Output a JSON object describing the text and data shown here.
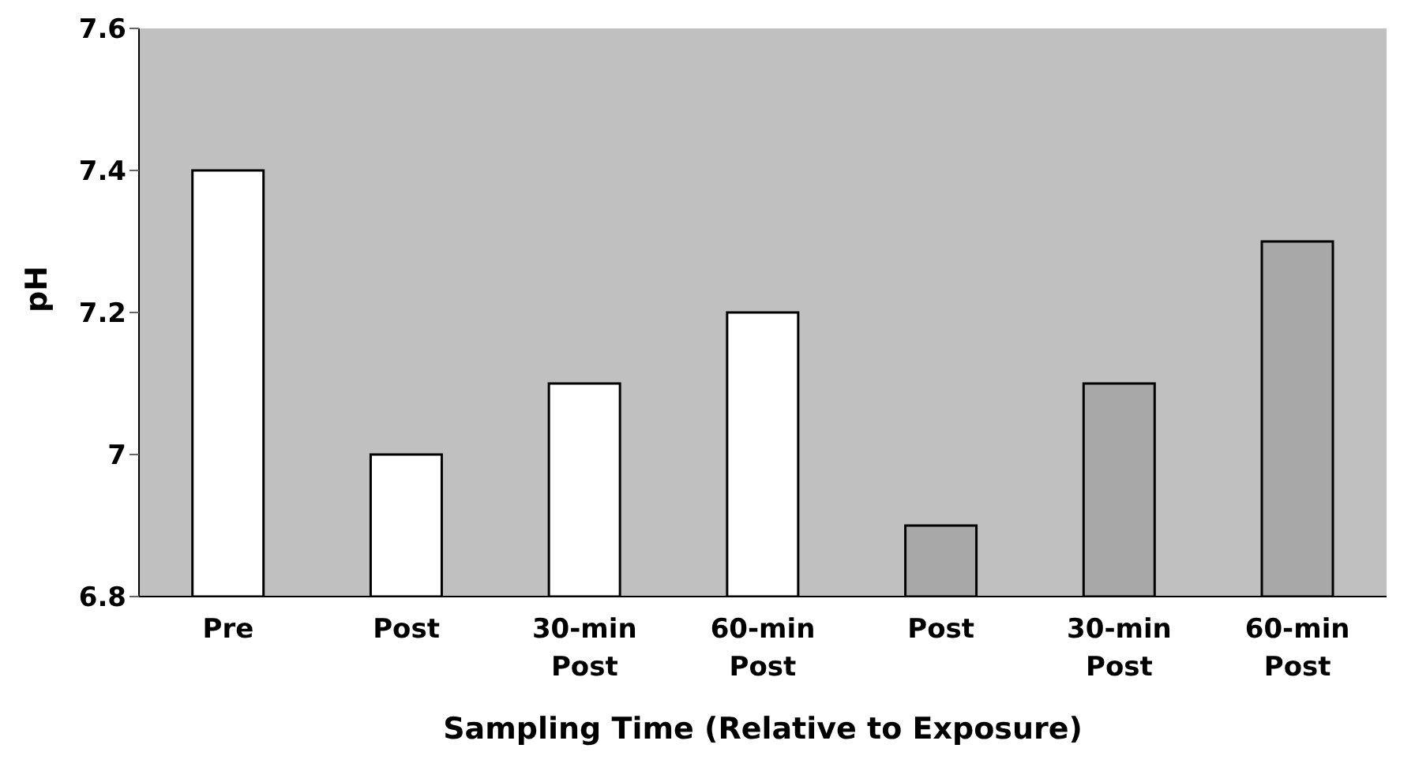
{
  "chart_data": {
    "type": "bar",
    "xlabel": "Sampling Time (Relative to Exposure)",
    "ylabel": "pH",
    "categories": [
      "Pre",
      "Post",
      "30-min Post",
      "60-min Post",
      "Post",
      "30-min Post",
      "60-min Post"
    ],
    "values": [
      7.4,
      7.0,
      7.1,
      7.2,
      6.9,
      7.1,
      7.3
    ],
    "colors": [
      "#ffffff",
      "#ffffff",
      "#ffffff",
      "#ffffff",
      "#a8a8a8",
      "#a8a8a8",
      "#a8a8a8"
    ],
    "ylim": [
      6.8,
      7.6
    ],
    "yticks": [
      6.8,
      {
        "value": 7,
        "label": "7"
      },
      7.2,
      7.4,
      7.6
    ],
    "legend": false
  }
}
